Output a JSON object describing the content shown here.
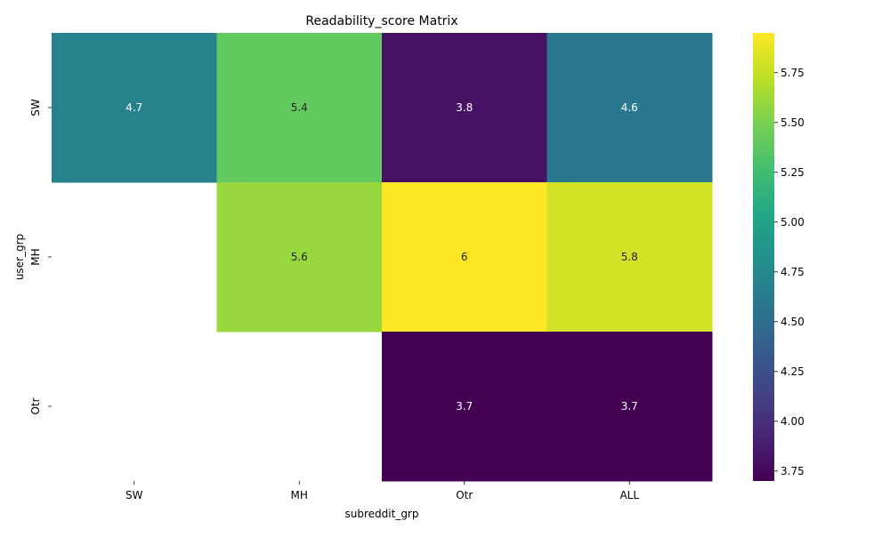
{
  "chart_data": {
    "type": "heatmap",
    "title": "Readability_score Matrix",
    "xlabel": "subreddit_grp",
    "ylabel": "user_grp",
    "x_categories": [
      "SW",
      "MH",
      "Otr",
      "ALL"
    ],
    "y_categories": [
      "SW",
      "MH",
      "Otr"
    ],
    "values": [
      [
        4.7,
        5.4,
        3.8,
        4.6
      ],
      [
        null,
        5.6,
        6.0,
        5.8
      ],
      [
        null,
        null,
        3.7,
        3.7
      ]
    ],
    "cell_labels": [
      [
        "4.7",
        "5.4",
        "3.8",
        "4.6"
      ],
      [
        null,
        "5.6",
        "6",
        "5.8"
      ],
      [
        null,
        null,
        "3.7",
        "3.7"
      ]
    ],
    "colormap": "viridis",
    "colorbar": {
      "range": [
        3.7,
        5.95
      ],
      "ticks": [
        3.75,
        4.0,
        4.25,
        4.5,
        4.75,
        5.0,
        5.25,
        5.5,
        5.75
      ],
      "tick_labels": [
        "3.75",
        "4.00",
        "4.25",
        "4.50",
        "4.75",
        "5.00",
        "5.25",
        "5.50",
        "5.75"
      ]
    },
    "grid": false
  }
}
